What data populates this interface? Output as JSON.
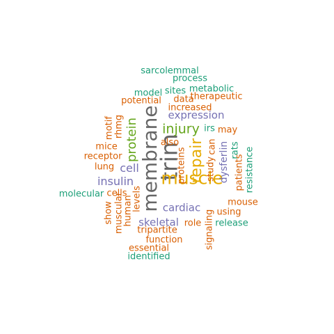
{
  "colors": {
    "gray": "#666666",
    "orange": "#D95F02",
    "green": "#1B9E77",
    "purple": "#7570B3",
    "olive": "#66A61E",
    "gold": "#E6AB02"
  },
  "words": [
    {
      "text": "membrane",
      "color": "gray",
      "vertical": true
    },
    {
      "text": "trim",
      "color": "gray",
      "vertical": true
    },
    {
      "text": "muscle",
      "color": "gold",
      "vertical": false
    },
    {
      "text": "repair",
      "color": "gold",
      "vertical": true
    },
    {
      "text": "injury",
      "color": "olive",
      "vertical": false
    },
    {
      "text": "protein",
      "color": "olive",
      "vertical": true
    },
    {
      "text": "expression",
      "color": "purple",
      "vertical": false
    },
    {
      "text": "insulin",
      "color": "purple",
      "vertical": false
    },
    {
      "text": "cell",
      "color": "purple",
      "vertical": false
    },
    {
      "text": "cardiac",
      "color": "purple",
      "vertical": false
    },
    {
      "text": "skeletal",
      "color": "purple",
      "vertical": false
    },
    {
      "text": "dysferlin",
      "color": "purple",
      "vertical": true
    },
    {
      "text": "sarcolemmal",
      "color": "green",
      "vertical": false
    },
    {
      "text": "process",
      "color": "green",
      "vertical": false
    },
    {
      "text": "metabolic",
      "color": "green",
      "vertical": false
    },
    {
      "text": "sites",
      "color": "green",
      "vertical": false
    },
    {
      "text": "model",
      "color": "green",
      "vertical": false
    },
    {
      "text": "therapeutic",
      "color": "orange",
      "vertical": false
    },
    {
      "text": "data",
      "color": "orange",
      "vertical": false
    },
    {
      "text": "potential",
      "color": "orange",
      "vertical": false
    },
    {
      "text": "increased",
      "color": "orange",
      "vertical": false
    },
    {
      "text": "irs",
      "color": "green",
      "vertical": false
    },
    {
      "text": "may",
      "color": "orange",
      "vertical": false
    },
    {
      "text": "motif",
      "color": "orange",
      "vertical": true
    },
    {
      "text": "rhmg",
      "color": "orange",
      "vertical": true
    },
    {
      "text": "also",
      "color": "orange",
      "vertical": false
    },
    {
      "text": "can",
      "color": "orange",
      "vertical": true
    },
    {
      "text": "rats",
      "color": "green",
      "vertical": true
    },
    {
      "text": "mice",
      "color": "orange",
      "vertical": false
    },
    {
      "text": "receptor",
      "color": "orange",
      "vertical": false
    },
    {
      "text": "lung",
      "color": "orange",
      "vertical": false
    },
    {
      "text": "proteins",
      "color": "orange",
      "vertical": true
    },
    {
      "text": "study",
      "color": "orange",
      "vertical": true
    },
    {
      "text": "patients",
      "color": "orange",
      "vertical": true
    },
    {
      "text": "resistance",
      "color": "green",
      "vertical": true
    },
    {
      "text": "molecular",
      "color": "green",
      "vertical": false
    },
    {
      "text": "cells",
      "color": "orange",
      "vertical": false
    },
    {
      "text": "mouse",
      "color": "orange",
      "vertical": false
    },
    {
      "text": "show",
      "color": "orange",
      "vertical": true
    },
    {
      "text": "muscular",
      "color": "orange",
      "vertical": true
    },
    {
      "text": "human",
      "color": "orange",
      "vertical": true
    },
    {
      "text": "levels",
      "color": "orange",
      "vertical": true
    },
    {
      "text": "using",
      "color": "orange",
      "vertical": false
    },
    {
      "text": "role",
      "color": "orange",
      "vertical": false
    },
    {
      "text": "release",
      "color": "green",
      "vertical": false
    },
    {
      "text": "signaling",
      "color": "orange",
      "vertical": true
    },
    {
      "text": "tripartite",
      "color": "orange",
      "vertical": false
    },
    {
      "text": "function",
      "color": "orange",
      "vertical": false
    },
    {
      "text": "essential",
      "color": "orange",
      "vertical": false
    },
    {
      "text": "identified",
      "color": "green",
      "vertical": false
    }
  ]
}
